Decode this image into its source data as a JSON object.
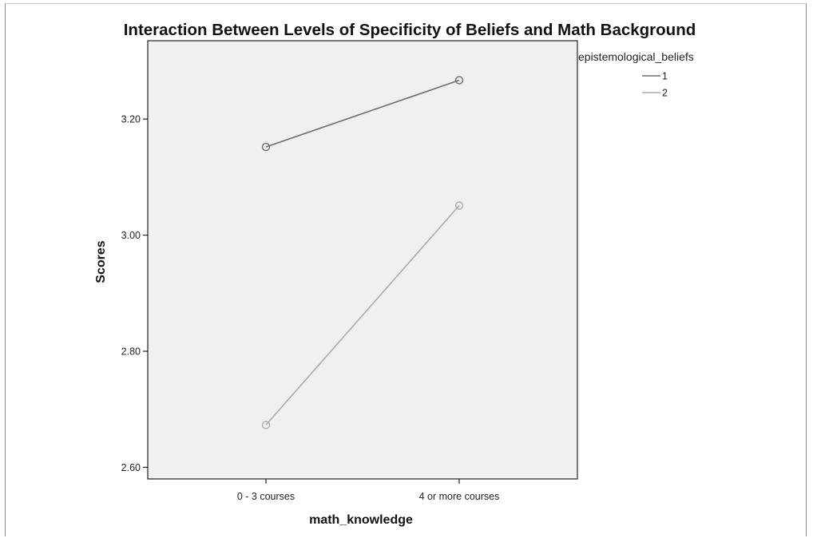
{
  "chart_data": {
    "type": "line",
    "title": "Interaction Between Levels of Specificity of Beliefs and Math Background",
    "xlabel": "math_knowledge",
    "ylabel": "Scores",
    "categories": [
      "0 - 3 courses",
      "4 or more courses"
    ],
    "ylim": [
      2.58,
      3.335
    ],
    "yticks": [
      2.6,
      2.8,
      3.0,
      3.2
    ],
    "ytick_labels": [
      "2.60",
      "2.80",
      "3.00",
      "3.20"
    ],
    "grid": false,
    "legend": {
      "title": "epistemological_beliefs",
      "placement": "top-right, outside plot"
    },
    "series": [
      {
        "name": "1",
        "values": [
          3.152,
          3.267
        ],
        "color": "#6e6e6e",
        "marker": "open-circle"
      },
      {
        "name": "2",
        "values": [
          2.673,
          3.051
        ],
        "color": "#acacac",
        "marker": "open-circle"
      }
    ],
    "colors": {
      "plot_background": "#f0f0f0",
      "axis": "#222222"
    }
  }
}
